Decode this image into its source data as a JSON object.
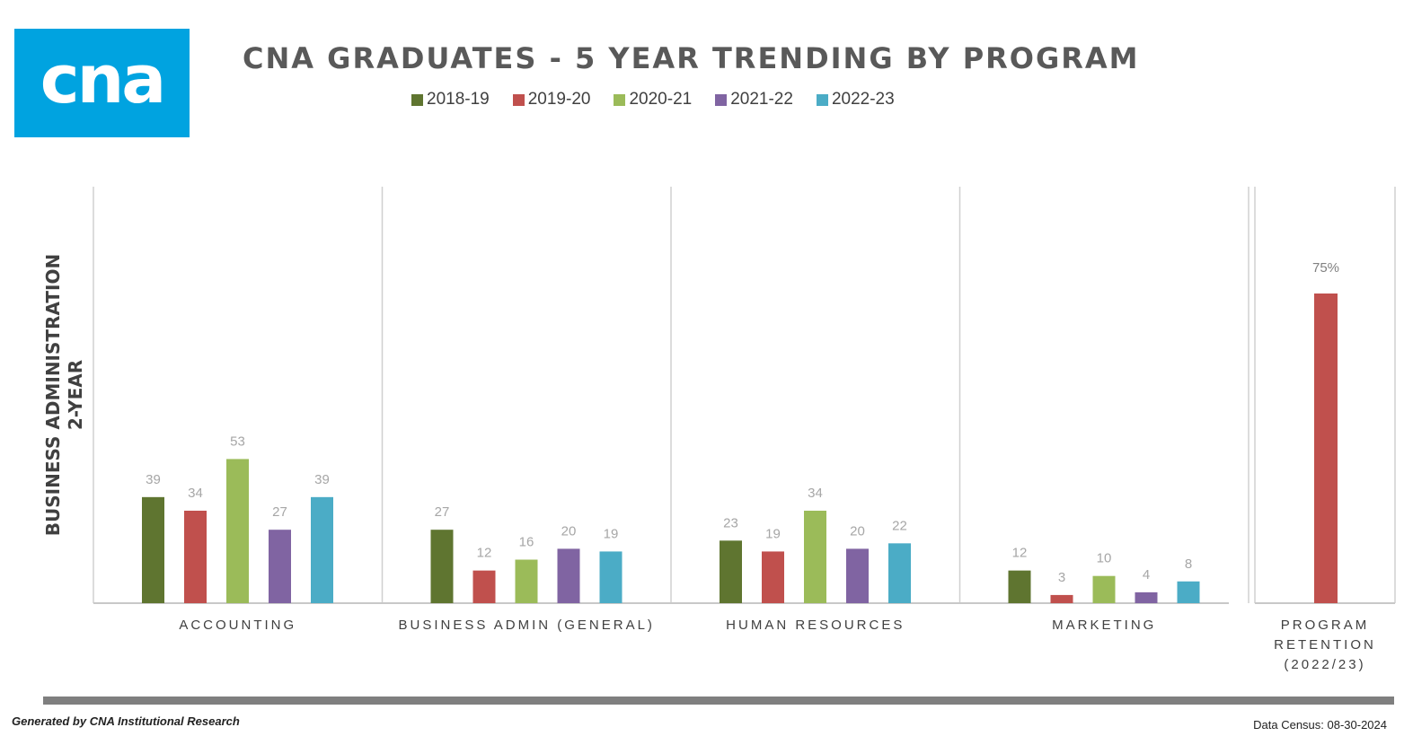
{
  "logo_text": "cna",
  "chart_data": {
    "type": "bar",
    "title": "CNA GRADUATES - 5 YEAR TRENDING BY PROGRAM",
    "ylabel_lines": [
      "BUSINESS ADMINISTRATION",
      "2-YEAR"
    ],
    "series": [
      {
        "name": "2018-19",
        "color": "#5f7530"
      },
      {
        "name": "2019-20",
        "color": "#c0504d"
      },
      {
        "name": "2020-21",
        "color": "#9bbb59"
      },
      {
        "name": "2021-22",
        "color": "#8064a2"
      },
      {
        "name": "2022-23",
        "color": "#4bacc6"
      }
    ],
    "categories": [
      "ACCOUNTING",
      "BUSINESS ADMIN (GENERAL)",
      "HUMAN RESOURCES",
      "MARKETING"
    ],
    "values": [
      [
        39,
        34,
        53,
        27,
        39
      ],
      [
        27,
        12,
        16,
        20,
        19
      ],
      [
        23,
        19,
        34,
        20,
        22
      ],
      [
        12,
        3,
        10,
        4,
        8
      ]
    ],
    "retention": {
      "label_lines": [
        "PROGRAM",
        "RETENTION",
        "(2022/23)"
      ],
      "value": 75,
      "value_label": "75%",
      "color": "#c0504d"
    }
  },
  "footer": {
    "generated_by": "Generated by CNA Institutional Research",
    "census": "Data Census: 08-30-2024"
  }
}
